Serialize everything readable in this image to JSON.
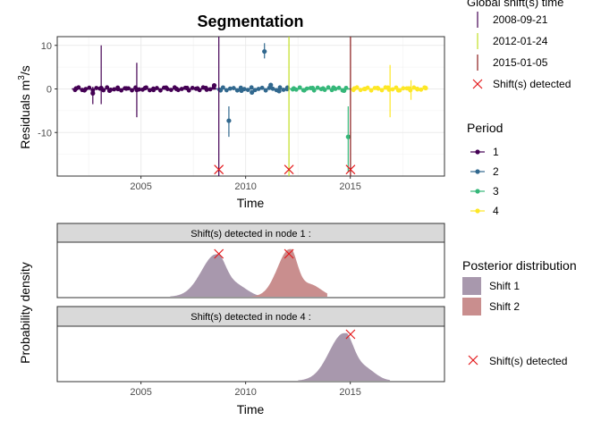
{
  "chart_data": [
    {
      "type": "scatter",
      "title": "Segmentation",
      "xlabel": "Time",
      "ylabel_main": "Residuals m",
      "ylabel_sup": "3",
      "ylabel_tail": "/s",
      "xlim": [
        2001.0,
        2019.5
      ],
      "ylim": [
        -20,
        12
      ],
      "xticks": [
        2005,
        2010,
        2015
      ],
      "yticks": [
        10,
        0,
        -10
      ],
      "series": [
        {
          "name": "1",
          "color": "#440154",
          "x_range": [
            2001.7,
            2008.6
          ],
          "points": [
            [
              2001.9,
              0.1
            ],
            [
              2002.3,
              -0.3
            ],
            [
              2002.7,
              -1.0
            ],
            [
              2003.1,
              0.2
            ],
            [
              2003.5,
              -0.4
            ],
            [
              2003.9,
              0.0
            ],
            [
              2004.3,
              0.1
            ],
            [
              2004.8,
              -0.2
            ],
            [
              2005.2,
              0.2
            ],
            [
              2005.6,
              -0.2
            ],
            [
              2006.2,
              0.3
            ],
            [
              2006.7,
              0.0
            ],
            [
              2007.2,
              0.2
            ],
            [
              2007.7,
              0.1
            ],
            [
              2008.1,
              0.2
            ],
            [
              2008.5,
              0.8
            ]
          ],
          "error_bars": [
            [
              2003.1,
              -3.5,
              10.0
            ],
            [
              2004.8,
              -6.5,
              6.0
            ],
            [
              2002.7,
              -3.5,
              0.5
            ]
          ]
        },
        {
          "name": "2",
          "color": "#31688e",
          "x_range": [
            2008.6,
            2012.1
          ],
          "points": [
            [
              2008.8,
              -0.3
            ],
            [
              2009.2,
              -7.3
            ],
            [
              2009.8,
              -0.4
            ],
            [
              2010.3,
              -0.8
            ],
            [
              2010.9,
              8.6
            ],
            [
              2011.2,
              0.9
            ],
            [
              2011.6,
              -0.5
            ],
            [
              2012.0,
              0.3
            ]
          ],
          "error_bars": [
            [
              2009.2,
              -11.0,
              -4.0
            ],
            [
              2010.9,
              7.0,
              10.5
            ]
          ]
        },
        {
          "name": "3",
          "color": "#35b779",
          "x_range": [
            2012.1,
            2015.0
          ],
          "points": [
            [
              2012.3,
              0.1
            ],
            [
              2012.8,
              -0.3
            ],
            [
              2013.2,
              0.2
            ],
            [
              2013.7,
              0.1
            ],
            [
              2014.2,
              0.3
            ],
            [
              2014.7,
              -0.4
            ],
            [
              2014.9,
              -11.0
            ]
          ],
          "error_bars": [
            [
              2014.9,
              -19.0,
              -4.0
            ]
          ]
        },
        {
          "name": "4",
          "color": "#fde725",
          "x_range": [
            2015.0,
            2018.7
          ],
          "points": [
            [
              2015.2,
              0.1
            ],
            [
              2015.7,
              0.0
            ],
            [
              2016.3,
              0.2
            ],
            [
              2016.8,
              0.3
            ],
            [
              2017.3,
              -0.3
            ],
            [
              2017.8,
              0.1
            ],
            [
              2018.2,
              0.0
            ],
            [
              2018.6,
              0.2
            ]
          ],
          "error_bars": [
            [
              2016.9,
              -6.5,
              5.5
            ],
            [
              2017.9,
              -2.5,
              2.0
            ]
          ]
        }
      ],
      "shift_lines": [
        {
          "label": "2008-09-21",
          "x": 2008.72,
          "color": "#440154"
        },
        {
          "label": "2012-01-24",
          "x": 2012.07,
          "color": "#c2df23"
        },
        {
          "label": "2015-01-05",
          "x": 2015.01,
          "color": "#8b1a1a"
        }
      ],
      "shift_markers_y": -18.5,
      "legend_title": "Global shift(s) time",
      "legend_shift_label": "Shift(s) detected",
      "period_legend_title": "Period",
      "period_labels": [
        "1",
        "2",
        "3",
        "4"
      ],
      "grid": true,
      "legend_placement": "right"
    },
    {
      "type": "area",
      "facet_label": "Shift(s) detected in node 1 :",
      "series": [
        {
          "name": "Shift 1",
          "color": "#a898ad",
          "center": 2008.6,
          "spread": 0.55,
          "peak": 0.85
        },
        {
          "name": "Shift 2",
          "color": "#c98e8e",
          "center": 2012.1,
          "spread": 0.45,
          "peak": 0.95
        }
      ],
      "shift_markers": [
        2008.72,
        2012.07
      ]
    },
    {
      "type": "area",
      "facet_label": "Shift(s) detected in node 4 :",
      "series": [
        {
          "name": "Shift 1",
          "color": "#a898ad",
          "center": 2014.7,
          "spread": 0.55,
          "peak": 0.95
        }
      ],
      "shift_markers": [
        2015.01
      ]
    }
  ],
  "lower": {
    "ylabel": "Probability density",
    "xlabel": "Time",
    "xticks": [
      2005,
      2010,
      2015
    ],
    "legend_title": "Posterior distribution",
    "legend_items": [
      "Shift 1",
      "Shift 2"
    ],
    "legend_shift_label": "Shift(s) detected"
  }
}
